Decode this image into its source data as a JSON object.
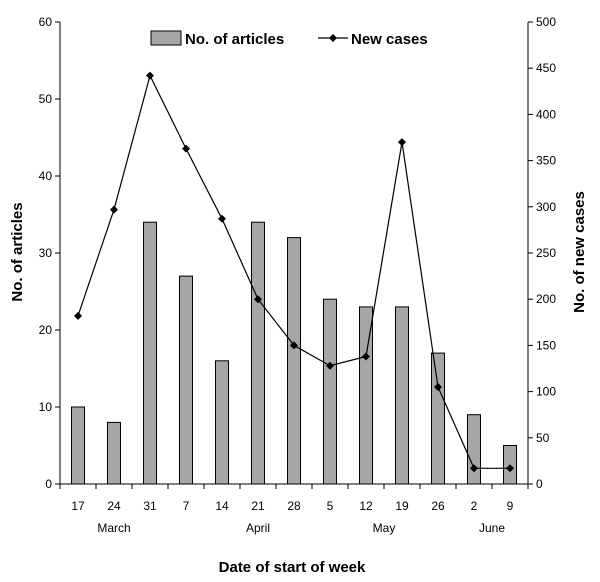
{
  "chart_data": {
    "type": "bar+line",
    "categories": [
      "17",
      "24",
      "31",
      "7",
      "14",
      "21",
      "28",
      "5",
      "12",
      "19",
      "26",
      "2",
      "9"
    ],
    "months": [
      "March",
      "April",
      "May",
      "June"
    ],
    "series": [
      {
        "name": "No. of articles",
        "type": "bar",
        "axis": "left",
        "values": [
          10,
          8,
          34,
          27,
          16,
          34,
          32,
          24,
          23,
          23,
          17,
          9,
          5
        ]
      },
      {
        "name": "New cases",
        "type": "line",
        "axis": "right",
        "values": [
          182,
          297,
          442,
          363,
          287,
          200,
          150,
          128,
          138,
          370,
          105,
          17,
          17
        ]
      }
    ],
    "xlabel": "Date of start of week",
    "ylabel": "No. of articles",
    "y2label": "No. of new cases",
    "ylim": [
      0,
      60
    ],
    "y2lim": [
      0,
      500
    ],
    "yticks": [
      0,
      10,
      20,
      30,
      40,
      50,
      60
    ],
    "y2ticks": [
      0,
      50,
      100,
      150,
      200,
      250,
      300,
      350,
      400,
      450,
      500
    ],
    "legend_position": "top-center",
    "grid": false,
    "colors": {
      "bar_fill": "#a6a6a6",
      "bar_stroke": "#000000",
      "line": "#000000",
      "marker": "#000000"
    }
  }
}
